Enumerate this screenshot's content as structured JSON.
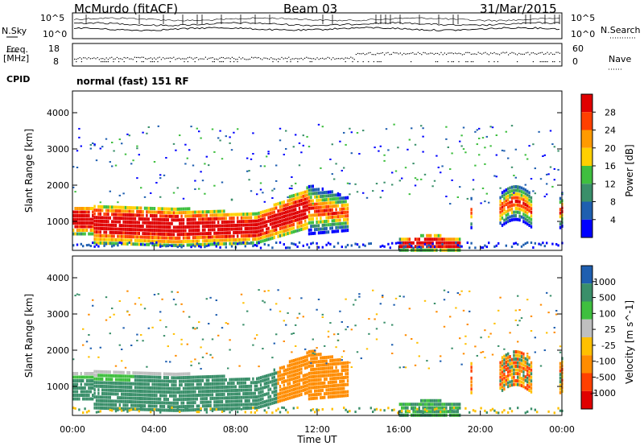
{
  "header": {
    "station": "McMurdo (fitACF)",
    "beam": "Beam 03",
    "date": "31/Mar/2015"
  },
  "left_labels": {
    "nsky": "N.Sky",
    "freq": "Freq.",
    "freq_unit": "[MHz]",
    "cpid": "CPID"
  },
  "right_labels": {
    "nsearch": "N.Search",
    "nave": "Nave"
  },
  "cpid_text": "normal (fast) 151 RF",
  "colors": {
    "power": [
      "#0000ff",
      "#1f5fb0",
      "#3a8f6a",
      "#3fbf3f",
      "#ffd000",
      "#ff9a00",
      "#ff4000",
      "#e00000"
    ],
    "velocity": [
      "#e00000",
      "#ff4000",
      "#ff8c00",
      "#ffc000",
      "#bfbfbf",
      "#3fbf3f",
      "#3a8f6a",
      "#1f5fb0"
    ]
  },
  "chart_data": [
    {
      "type": "line",
      "name": "noise",
      "ylabel_left": "N.Sky",
      "ylabel_right": "N.Search",
      "left_ticks": [
        "10^5",
        "10^0"
      ],
      "right_ticks": [
        "10^5",
        "10^0"
      ]
    },
    {
      "type": "scatter",
      "name": "frequency-nave",
      "left_ticks": [
        "18",
        "8"
      ],
      "right_ticks": [
        "60",
        "0"
      ]
    },
    {
      "type": "heatmap",
      "name": "power",
      "ylabel": "Slant Range [km]",
      "yticks": [
        "4000",
        "3000",
        "2000",
        "1000"
      ],
      "colorbar_label": "Power [dB]",
      "colorbar_ticks": [
        "28",
        "24",
        "20",
        "16",
        "12",
        "8",
        "4"
      ],
      "features": [
        {
          "t0": 0.0,
          "t1": 11.5,
          "range_low": 400,
          "range_high": 1450,
          "level": "high"
        },
        {
          "t0": 11.5,
          "t1": 13.5,
          "range_low": 700,
          "range_high": 2100,
          "level": "medium"
        },
        {
          "t0": 16.0,
          "t1": 19.0,
          "range_low": 250,
          "range_high": 700,
          "level": "high"
        },
        {
          "t0": 19.5,
          "t1": 24.0,
          "range_low": 900,
          "range_high": 2100,
          "level": "medium"
        }
      ]
    },
    {
      "type": "heatmap",
      "name": "velocity",
      "ylabel": "Slant Range [km]",
      "yticks": [
        "4000",
        "3000",
        "2000",
        "1000"
      ],
      "colorbar_label": "Velocity [m s^-1]",
      "colorbar_ticks": [
        "1000",
        "500",
        "100",
        "25",
        "-25",
        "-100",
        "-500",
        "-1000"
      ],
      "xlabel": "Time UT",
      "xticks": [
        "00:00",
        "04:00",
        "08:00",
        "12:00",
        "16:00",
        "20:00",
        "00:00"
      ]
    }
  ]
}
